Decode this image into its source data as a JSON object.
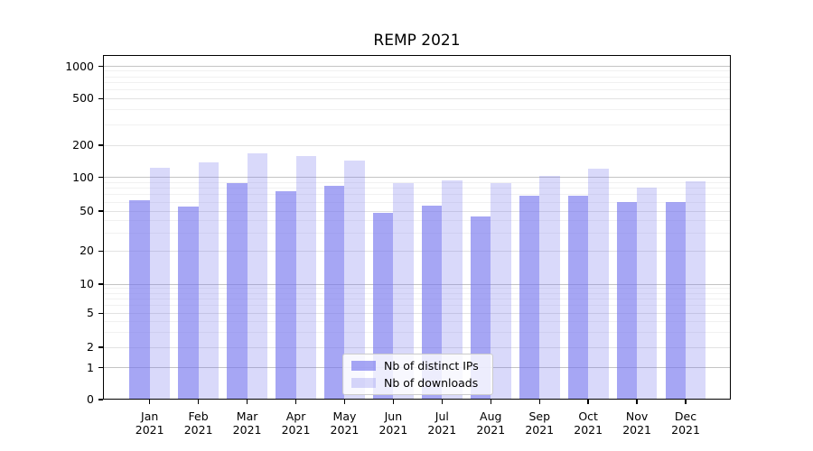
{
  "chart_data": {
    "type": "bar",
    "title": "REMP 2021",
    "categories": [
      "Jan 2021",
      "Feb 2021",
      "Mar 2021",
      "Apr 2021",
      "May 2021",
      "Jun 2021",
      "Jul 2021",
      "Aug 2021",
      "Sep 2021",
      "Oct 2021",
      "Nov 2021",
      "Dec 2021"
    ],
    "series": [
      {
        "name": "Nb of distinct IPs",
        "color": "#7777ee",
        "alpha": 0.65,
        "values": [
          62,
          55,
          88,
          75,
          84,
          48,
          56,
          44,
          68,
          68,
          60,
          60
        ]
      },
      {
        "name": "Nb of downloads",
        "color": "#7777ee",
        "alpha": 0.28,
        "values": [
          122,
          138,
          167,
          157,
          143,
          89,
          94,
          89,
          102,
          120,
          81,
          92
        ]
      }
    ],
    "xlabel": "",
    "ylabel": "",
    "yscale": "log-like (linear 0 to 1, logarithmic above 1)",
    "yticks": [
      0,
      1,
      2,
      5,
      10,
      20,
      50,
      100,
      200,
      500,
      1000
    ],
    "y_minor_ticks": [
      3,
      4,
      6,
      7,
      8,
      9,
      30,
      40,
      60,
      70,
      80,
      90,
      300,
      400,
      600,
      700,
      800,
      900
    ],
    "ylim": [
      0,
      1300
    ],
    "grid": "on",
    "legend": {
      "position": "lower center inside plot",
      "labels": [
        "Nb of distinct IPs",
        "Nb of downloads"
      ]
    }
  }
}
